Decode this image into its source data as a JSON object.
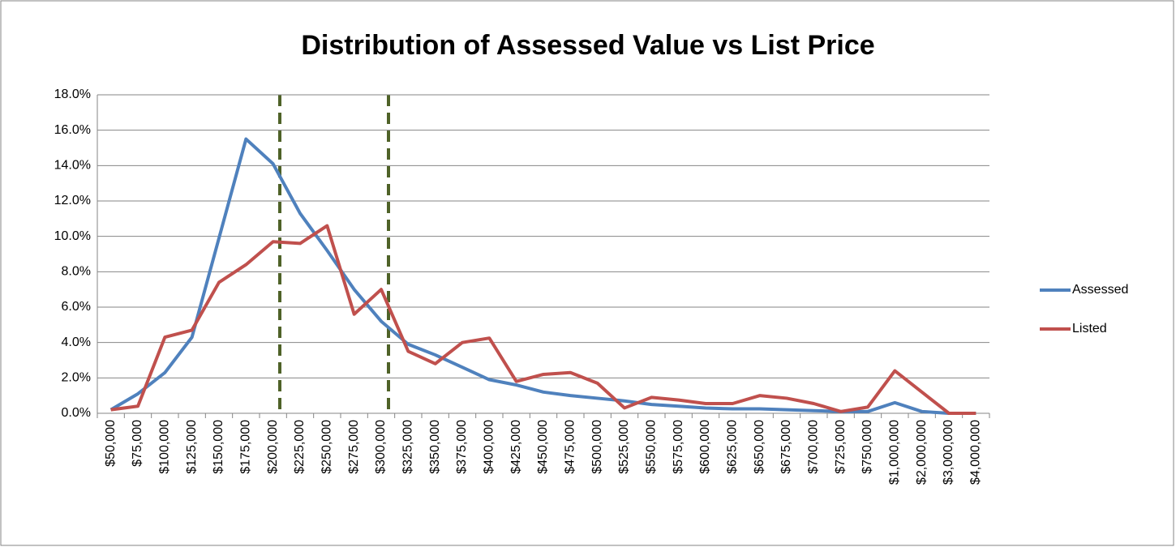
{
  "chart_data": {
    "type": "line",
    "title": "Distribution of Assessed Value vs List Price",
    "categories": [
      "$50,000",
      "$75,000",
      "$100,000",
      "$125,000",
      "$150,000",
      "$175,000",
      "$200,000",
      "$225,000",
      "$250,000",
      "$275,000",
      "$300,000",
      "$325,000",
      "$350,000",
      "$375,000",
      "$400,000",
      "$425,000",
      "$450,000",
      "$475,000",
      "$500,000",
      "$525,000",
      "$550,000",
      "$575,000",
      "$600,000",
      "$625,000",
      "$650,000",
      "$675,000",
      "$700,000",
      "$725,000",
      "$750,000",
      "$1,000,000",
      "$2,000,000",
      "$3,000,000",
      "$4,000,000"
    ],
    "series": [
      {
        "name": "Assessed",
        "color": "#4f81bd",
        "values": [
          0.2,
          1.1,
          2.3,
          4.3,
          9.9,
          15.5,
          14.1,
          11.3,
          9.2,
          7.0,
          5.2,
          3.9,
          3.3,
          2.6,
          1.9,
          1.6,
          1.2,
          1.0,
          0.85,
          0.7,
          0.5,
          0.4,
          0.3,
          0.25,
          0.25,
          0.2,
          0.15,
          0.1,
          0.1,
          0.6,
          0.1,
          0.0,
          0.0
        ]
      },
      {
        "name": "Listed",
        "color": "#c0504d",
        "values": [
          0.2,
          0.4,
          4.3,
          4.7,
          7.4,
          8.4,
          9.7,
          9.6,
          10.6,
          5.6,
          7.0,
          3.5,
          2.8,
          4.0,
          4.25,
          1.8,
          2.2,
          2.3,
          1.7,
          0.3,
          0.9,
          0.75,
          0.55,
          0.55,
          1.0,
          0.85,
          0.55,
          0.1,
          0.35,
          2.4,
          1.2,
          0.0,
          0.0
        ]
      }
    ],
    "ylim": [
      0,
      18
    ],
    "yticks": [
      {
        "value": 0,
        "label": "0.0%"
      },
      {
        "value": 2,
        "label": "2.0%"
      },
      {
        "value": 4,
        "label": "4.0%"
      },
      {
        "value": 6,
        "label": "6.0%"
      },
      {
        "value": 8,
        "label": "8.0%"
      },
      {
        "value": 10,
        "label": "10.0%"
      },
      {
        "value": 12,
        "label": "12.0%"
      },
      {
        "value": 14,
        "label": "14.0%"
      },
      {
        "value": 16,
        "label": "16.0%"
      },
      {
        "value": 18,
        "label": "18.0%"
      }
    ],
    "grid": true,
    "legend": "right"
  }
}
